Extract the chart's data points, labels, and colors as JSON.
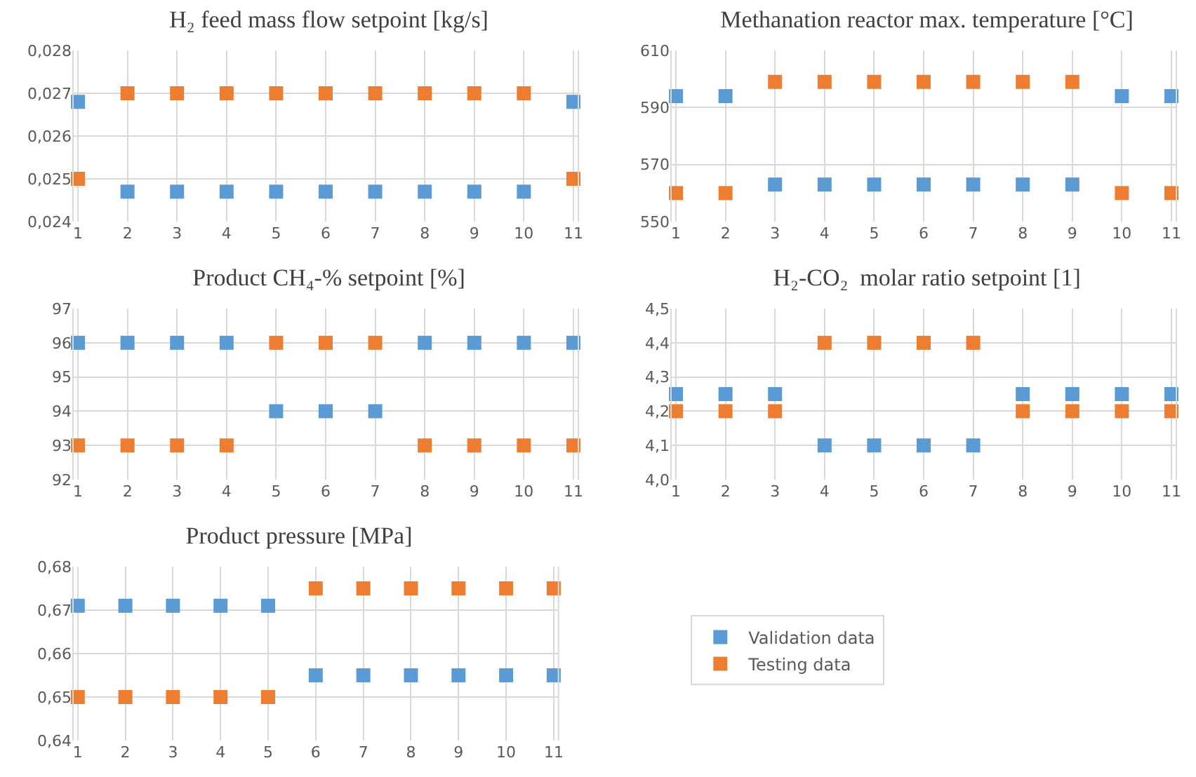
{
  "chart_data": [
    {
      "type": "scatter",
      "title": "H₂ feed mass flow setpoint [kg/s]",
      "categories": [
        "1",
        "2",
        "3",
        "4",
        "5",
        "6",
        "7",
        "8",
        "9",
        "10",
        "11"
      ],
      "marker": "square",
      "grid": true,
      "legend": false,
      "ylim": [
        0.024,
        0.028
      ],
      "yticks": [
        {
          "value": 0.024,
          "label": "0,024"
        },
        {
          "value": 0.025,
          "label": "0,025"
        },
        {
          "value": 0.026,
          "label": "0,026"
        },
        {
          "value": 0.027,
          "label": "0,027"
        },
        {
          "value": 0.028,
          "label": "0,028"
        }
      ],
      "series": [
        {
          "color": "#5b9bd5",
          "values": [
            0.0268,
            0.0247,
            0.0247,
            0.0247,
            0.0247,
            0.0247,
            0.0247,
            0.0247,
            0.0247,
            0.0247,
            0.0268
          ]
        },
        {
          "color": "#ed7d31",
          "values": [
            0.025,
            0.027,
            0.027,
            0.027,
            0.027,
            0.027,
            0.027,
            0.027,
            0.027,
            0.027,
            0.025
          ]
        }
      ]
    },
    {
      "type": "scatter",
      "title": "Methanation reactor max. temperature [°C]",
      "categories": [
        "1",
        "2",
        "3",
        "4",
        "5",
        "6",
        "7",
        "8",
        "9",
        "10",
        "11"
      ],
      "marker": "square",
      "grid": true,
      "legend": false,
      "ylim": [
        550,
        610
      ],
      "yticks": [
        550,
        570,
        590,
        610
      ],
      "series": [
        {
          "color": "#5b9bd5",
          "values": [
            594,
            594,
            563,
            563,
            563,
            563,
            563,
            563,
            563,
            594,
            594
          ]
        },
        {
          "color": "#ed7d31",
          "values": [
            560,
            560,
            599,
            599,
            599,
            599,
            599,
            599,
            599,
            560,
            560
          ]
        }
      ]
    },
    {
      "type": "scatter",
      "title": "Product CH₄-% setpoint [%]",
      "categories": [
        "1",
        "2",
        "3",
        "4",
        "5",
        "6",
        "7",
        "8",
        "9",
        "10",
        "11"
      ],
      "marker": "square",
      "grid": true,
      "legend": false,
      "ylim": [
        92,
        97
      ],
      "yticks": [
        92,
        93,
        94,
        95,
        96,
        97
      ],
      "series": [
        {
          "color": "#5b9bd5",
          "values": [
            96,
            96,
            96,
            96,
            94,
            94,
            94,
            96,
            96,
            96,
            96
          ]
        },
        {
          "color": "#ed7d31",
          "values": [
            93,
            93,
            93,
            93,
            96,
            96,
            96,
            93,
            93,
            93,
            93
          ]
        }
      ]
    },
    {
      "type": "scatter",
      "title": "H₂-CO₂  molar ratio setpoint [1]",
      "categories": [
        "1",
        "2",
        "3",
        "4",
        "5",
        "6",
        "7",
        "8",
        "9",
        "10",
        "11"
      ],
      "marker": "square",
      "grid": true,
      "legend": false,
      "ylim": [
        4.0,
        4.5
      ],
      "yticks": [
        {
          "value": 4.0,
          "label": "4,0"
        },
        {
          "value": 4.1,
          "label": "4,1"
        },
        {
          "value": 4.2,
          "label": "4,2"
        },
        {
          "value": 4.3,
          "label": "4,3"
        },
        {
          "value": 4.4,
          "label": "4,4"
        },
        {
          "value": 4.5,
          "label": "4,5"
        }
      ],
      "series": [
        {
          "color": "#5b9bd5",
          "values": [
            4.25,
            4.25,
            4.25,
            4.1,
            4.1,
            4.1,
            4.1,
            4.25,
            4.25,
            4.25,
            4.25
          ]
        },
        {
          "color": "#ed7d31",
          "values": [
            4.2,
            4.2,
            4.2,
            4.4,
            4.4,
            4.4,
            4.4,
            4.2,
            4.2,
            4.2,
            4.2
          ]
        }
      ]
    },
    {
      "type": "scatter",
      "title": "Product pressure [MPa]",
      "categories": [
        "1",
        "2",
        "3",
        "4",
        "5",
        "6",
        "7",
        "8",
        "9",
        "10",
        "11"
      ],
      "marker": "square",
      "grid": true,
      "legend": "right",
      "ylim": [
        0.64,
        0.68
      ],
      "yticks": [
        {
          "value": 0.64,
          "label": "0,64"
        },
        {
          "value": 0.65,
          "label": "0,65"
        },
        {
          "value": 0.66,
          "label": "0,66"
        },
        {
          "value": 0.67,
          "label": "0,67"
        },
        {
          "value": 0.68,
          "label": "0,68"
        }
      ],
      "series": [
        {
          "name": "Validation data",
          "color": "#5b9bd5",
          "values": [
            0.671,
            0.671,
            0.671,
            0.671,
            0.671,
            0.655,
            0.655,
            0.655,
            0.655,
            0.655,
            0.655
          ]
        },
        {
          "name": "Testing data",
          "color": "#ed7d31",
          "values": [
            0.65,
            0.65,
            0.65,
            0.65,
            0.65,
            0.675,
            0.675,
            0.675,
            0.675,
            0.675,
            0.675
          ]
        }
      ]
    }
  ]
}
